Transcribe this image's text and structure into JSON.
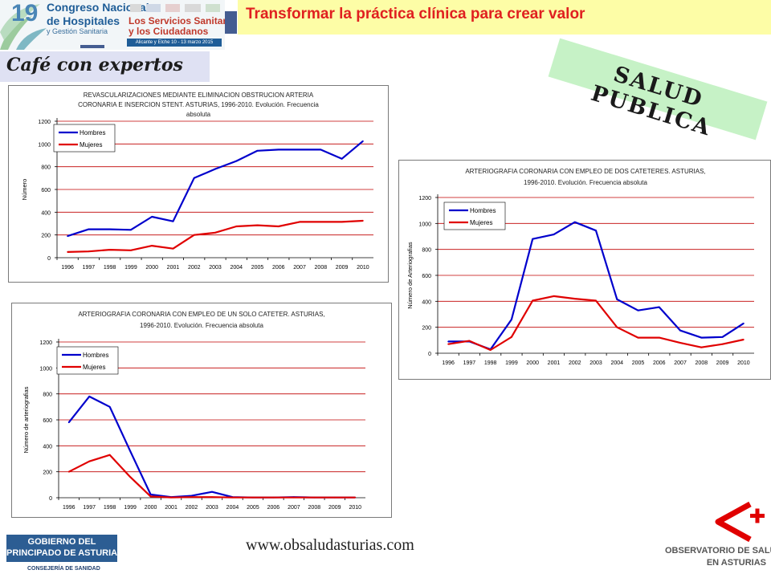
{
  "banner": {
    "edition": "19",
    "congress_line1": "Congreso Nacional",
    "congress_line2": "de Hospitales",
    "congress_line3": "y Gestión Sanitaria",
    "theme_line1": "Los Servicios Sanitarios",
    "theme_line2": "y los Ciudadanos",
    "dates": "Alicante y Elche 10 - 13 marzo 2015"
  },
  "header": {
    "title": "Transformar la práctica clínica para crear valor"
  },
  "section_label": "Café con expertos",
  "stamp": "SALUD PUBLICA",
  "footer": {
    "gov_line1": "GOBIERNO DEL",
    "gov_line2": "PRINCIPADO DE ASTURIAS",
    "consejeria": "CONSEJERÍA DE SANIDAD",
    "website": "www.obsaludasturias.com",
    "obs_line1": "OBSERVATORIO DE SALUD",
    "obs_line2": "EN ASTURIAS"
  },
  "colors": {
    "hombres": "#0000cc",
    "mujeres": "#e00000",
    "grid": "#c00000",
    "title_red": "#e02020",
    "header_bg": "#fdfda6",
    "stamp_bg": "#c6f2c6"
  },
  "chart_data": [
    {
      "type": "line",
      "title_lines": [
        "REVASCULARIZACIONES MEDIANTE ELIMINACION OBSTRUCION ARTERIA",
        "CORONARIA E INSERCION STENT. ASTURIAS, 1996-2010. Evolución. Frecuencia",
        "absoluta"
      ],
      "ylabel": "Número",
      "x": [
        "1996",
        "1997",
        "1998",
        "1999",
        "2000",
        "2001",
        "2002",
        "2003",
        "2004",
        "2005",
        "2006",
        "2007",
        "2008",
        "2009",
        "2010"
      ],
      "yticks": [
        0,
        200,
        400,
        600,
        800,
        1000,
        1200
      ],
      "ylim": [
        0,
        1200
      ],
      "grid": true,
      "legend": "top-left",
      "series": [
        {
          "name": "Hombres",
          "color": "#0000cc",
          "values": [
            190,
            250,
            250,
            245,
            360,
            320,
            700,
            780,
            850,
            940,
            950,
            950,
            950,
            870,
            1025
          ]
        },
        {
          "name": "Mujeres",
          "color": "#e00000",
          "values": [
            50,
            55,
            70,
            65,
            105,
            80,
            200,
            220,
            275,
            285,
            275,
            315,
            315,
            315,
            325
          ]
        }
      ]
    },
    {
      "type": "line",
      "title_lines": [
        "ARTERIOGRAFIA CORONARIA CON EMPLEO DE DOS CATETERES. ASTURIAS,",
        "1996-2010. Evolución. Frecuencia absoluta"
      ],
      "ylabel": "Número de Arteriografias",
      "x": [
        "1996",
        "1997",
        "1998",
        "1999",
        "2000",
        "2001",
        "2002",
        "2003",
        "2004",
        "2005",
        "2006",
        "2007",
        "2008",
        "2009",
        "2010"
      ],
      "yticks": [
        0,
        200,
        400,
        600,
        800,
        1000,
        1200
      ],
      "ylim": [
        0,
        1200
      ],
      "grid": true,
      "legend": "top-left",
      "series": [
        {
          "name": "Hombres",
          "color": "#0000cc",
          "values": [
            90,
            90,
            30,
            260,
            880,
            915,
            1010,
            945,
            415,
            330,
            355,
            175,
            120,
            125,
            230
          ]
        },
        {
          "name": "Mujeres",
          "color": "#e00000",
          "values": [
            70,
            95,
            25,
            125,
            405,
            440,
            420,
            405,
            200,
            120,
            120,
            80,
            45,
            70,
            105
          ]
        }
      ]
    },
    {
      "type": "line",
      "title_lines": [
        "ARTERIOGRAFIA CORONARIA CON EMPLEO DE UN SOLO CATETER. ASTURIAS,",
        "1996-2010. Evolución. Frecuencia absoluta"
      ],
      "ylabel": "Número de arteriografias",
      "x": [
        "1996",
        "1997",
        "1998",
        "1999",
        "2000",
        "2001",
        "2002",
        "2003",
        "2004",
        "2005",
        "2006",
        "2007",
        "2008",
        "2009",
        "2010"
      ],
      "yticks": [
        0,
        200,
        400,
        600,
        800,
        1000,
        1200
      ],
      "ylim": [
        0,
        1200
      ],
      "grid": true,
      "legend": "top-left",
      "series": [
        {
          "name": "Hombres",
          "color": "#0000cc",
          "values": [
            580,
            780,
            700,
            360,
            25,
            5,
            15,
            45,
            5,
            2,
            2,
            5,
            2,
            2,
            2
          ]
        },
        {
          "name": "Mujeres",
          "color": "#e00000",
          "values": [
            200,
            280,
            330,
            160,
            10,
            2,
            5,
            5,
            2,
            2,
            2,
            2,
            2,
            2,
            2
          ]
        }
      ]
    }
  ]
}
